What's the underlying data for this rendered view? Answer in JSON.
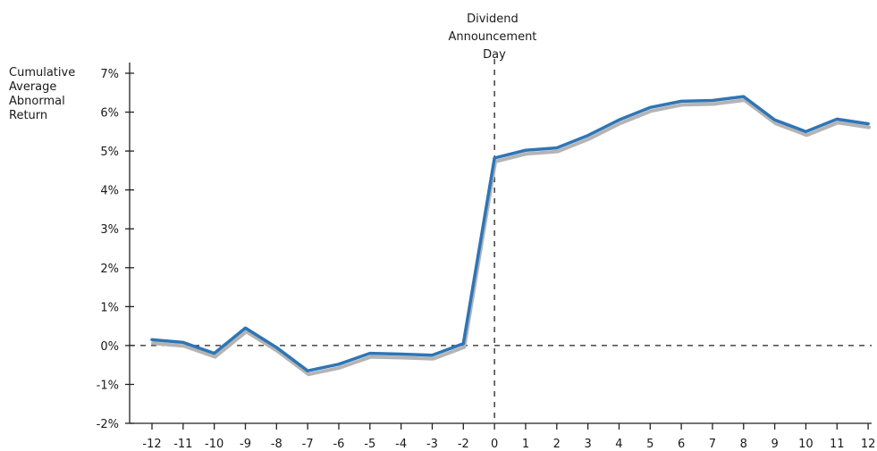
{
  "chart_data": {
    "type": "line",
    "title": "",
    "ylabel": "Cumulative Average Abnormal Return",
    "ylabel_lines": [
      "Cumulative",
      "Average",
      "Abnormal",
      "Return"
    ],
    "xlabel": "",
    "annotation": "Dividend Announcement Day",
    "annotation_lines": [
      "Dividend",
      "Announcement",
      "Day"
    ],
    "x": [
      -12,
      -11,
      -10,
      -9,
      -8,
      -7,
      -6,
      -5,
      -4,
      -3,
      -2,
      0,
      1,
      2,
      3,
      4,
      5,
      6,
      7,
      8,
      9,
      10,
      11,
      12
    ],
    "x_tick_labels": [
      "-12",
      "-11",
      "-10",
      "-9",
      "-8",
      "-7",
      "-6",
      "-5",
      "-4",
      "-3",
      "-2",
      "0",
      "1",
      "2",
      "3",
      "4",
      "5",
      "6",
      "7",
      "8",
      "9",
      "10",
      "11",
      "12"
    ],
    "series": [
      {
        "color": "#2e75b6",
        "values": [
          0.15,
          0.08,
          -0.2,
          0.45,
          -0.05,
          -0.65,
          -0.48,
          -0.2,
          -0.22,
          -0.25,
          0.05,
          4.82,
          5.02,
          5.08,
          5.4,
          5.8,
          6.12,
          6.28,
          6.3,
          6.4,
          5.8,
          5.5,
          5.82,
          5.7
        ]
      }
    ],
    "shadow_color": "#b4b4b4",
    "y_ticks": [
      -2,
      -1,
      0,
      1,
      2,
      3,
      4,
      5,
      6,
      7
    ],
    "y_tick_labels": [
      "-2%",
      "-1%",
      "0%",
      "1%",
      "2%",
      "3%",
      "4%",
      "5%",
      "6%",
      "7%"
    ],
    "ylim": [
      -2,
      7.2
    ],
    "reference_lines": {
      "y": 0,
      "x": 0,
      "style": "dashed"
    },
    "grid": false,
    "legend": "none"
  }
}
